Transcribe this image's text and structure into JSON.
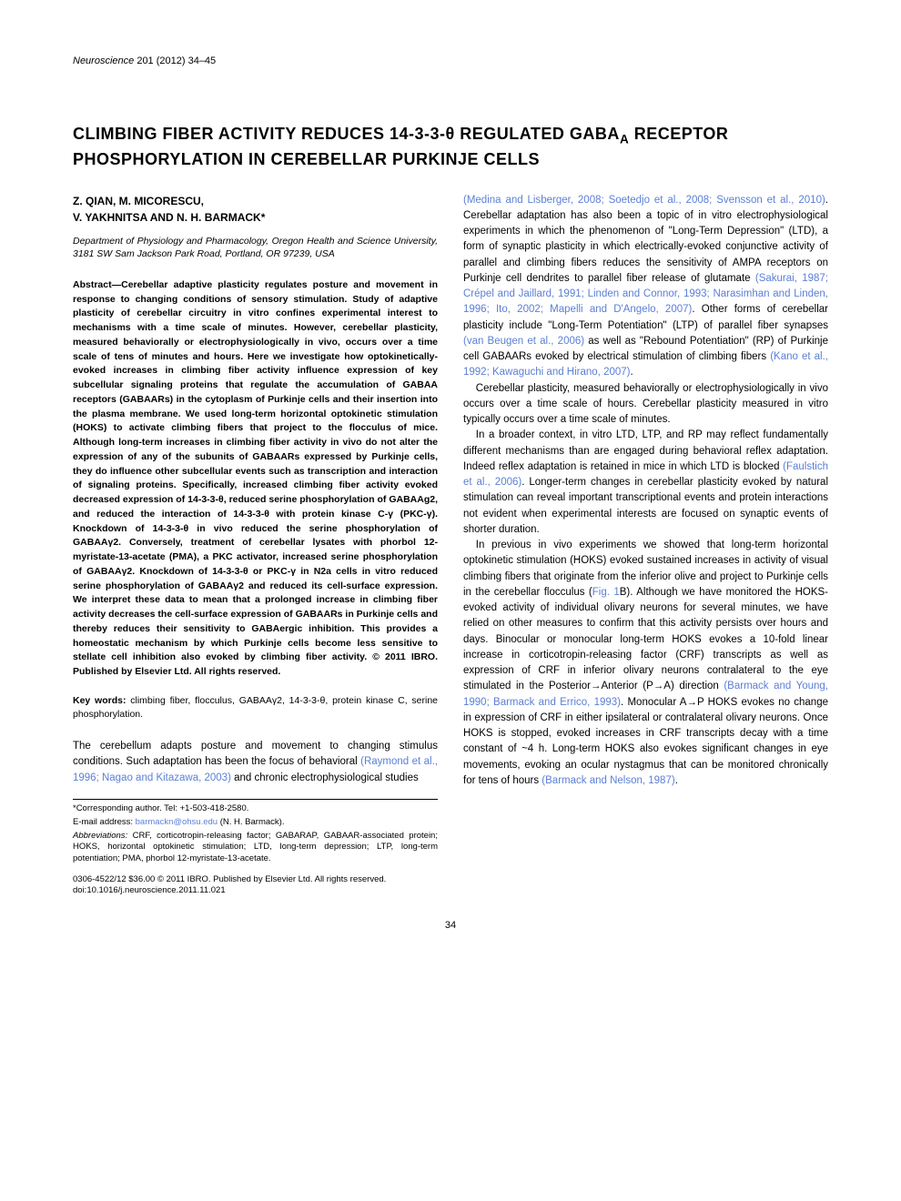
{
  "journal": {
    "name": "Neuroscience",
    "ref": " 201 (2012) 34–45"
  },
  "title": "CLIMBING FIBER ACTIVITY REDUCES 14-3-3-θ REGULATED GABA",
  "title_sub": "A",
  "title_line2": " RECEPTOR PHOSPHORYLATION IN CEREBELLAR PURKINJE CELLS",
  "authors_line1": "Z. QIAN, M. MICORESCU,",
  "authors_line2": "V. YAKHNITSA AND N. H. BARMACK*",
  "affiliation": "Department of Physiology and Pharmacology, Oregon Health and Science University, 3181 SW Sam Jackson Park Road, Portland, OR 97239, USA",
  "abstract_label": "Abstract—",
  "abstract_text": "Cerebellar adaptive plasticity regulates posture and movement in response to changing conditions of sensory stimulation. Study of adaptive plasticity of cerebellar circuitry in vitro confines experimental interest to mechanisms with a time scale of minutes. However, cerebellar plasticity, measured behaviorally or electrophysiologically in vivo, occurs over a time scale of tens of minutes and hours. Here we investigate how optokinetically-evoked increases in climbing fiber activity influence expression of key subcellular signaling proteins that regulate the accumulation of GABAA receptors (GABAARs) in the cytoplasm of Purkinje cells and their insertion into the plasma membrane. We used long-term horizontal optokinetic stimulation (HOKS) to activate climbing fibers that project to the flocculus of mice. Although long-term increases in climbing fiber activity in vivo do not alter the expression of any of the subunits of GABAARs expressed by Purkinje cells, they do influence other subcellular events such as transcription and interaction of signaling proteins. Specifically, increased climbing fiber activity evoked decreased expression of 14-3-3-θ, reduced serine phosphorylation of GABAAg2, and reduced the interaction of 14-3-3-θ with protein kinase C-γ (PKC-γ). Knockdown of 14-3-3-θ in vivo reduced the serine phosphorylation of GABAAγ2. Conversely, treatment of cerebellar lysates with phorbol 12-myristate-13-acetate (PMA), a PKC activator, increased serine phosphorylation of GABAAγ2. Knockdown of 14-3-3-θ or PKC-γ in N2a cells in vitro reduced serine phosphorylation of GABAAγ2 and reduced its cell-surface expression. We interpret these data to mean that a prolonged increase in climbing fiber activity decreases the cell-surface expression of GABAARs in Purkinje cells and thereby reduces their sensitivity to GABAergic inhibition. This provides a homeostatic mechanism by which Purkinje cells become less sensitive to stellate cell inhibition also evoked by climbing fiber activity. © 2011 IBRO. Published by Elsevier Ltd. All rights reserved.",
  "keywords_label": "Key words: ",
  "keywords_text": "climbing fiber, flocculus, GABAAγ2, 14-3-3-θ, protein kinase C, serine phosphorylation.",
  "intro_p1_a": "The cerebellum adapts posture and movement to changing stimulus conditions. Such adaptation has been the focus of behavioral ",
  "intro_p1_ref1": "(Raymond et al., 1996; Nagao and Kitazawa, 2003)",
  "intro_p1_b": " and chronic electrophysiological studies",
  "col2_p1_ref1": "(Medina and Lisberger, 2008; Soetedjo et al., 2008; Svensson et al., 2010)",
  "col2_p1_a": ". Cerebellar adaptation has also been a topic of in vitro electrophysiological experiments in which the phenomenon of \"Long-Term Depression\" (LTD), a form of synaptic plasticity in which electrically-evoked conjunctive activity of parallel and climbing fibers reduces the sensitivity of AMPA receptors on Purkinje cell dendrites to parallel fiber release of glutamate ",
  "col2_p1_ref2": "(Sakurai, 1987; Crépel and Jaillard, 1991; Linden and Connor, 1993; Narasimhan and Linden, 1996; Ito, 2002; Mapelli and D'Angelo, 2007)",
  "col2_p1_b": ". Other forms of cerebellar plasticity include \"Long-Term Potentiation\" (LTP) of parallel fiber synapses ",
  "col2_p1_ref3": "(van Beugen et al., 2006)",
  "col2_p1_c": " as well as \"Rebound Potentiation\" (RP) of Purkinje cell GABAARs evoked by electrical stimulation of climbing fibers ",
  "col2_p1_ref4": "(Kano et al., 1992; Kawaguchi and Hirano, 2007)",
  "col2_p1_d": ".",
  "col2_p2": "Cerebellar plasticity, measured behaviorally or electrophysiologically in vivo occurs over a time scale of hours. Cerebellar plasticity measured in vitro typically occurs over a time scale of minutes.",
  "col2_p3_a": "In a broader context, in vitro LTD, LTP, and RP may reflect fundamentally different mechanisms than are engaged during behavioral reflex adaptation. Indeed reflex adaptation is retained in mice in which LTD is blocked ",
  "col2_p3_ref1": "(Faulstich et al., 2006)",
  "col2_p3_b": ". Longer-term changes in cerebellar plasticity evoked by natural stimulation can reveal important transcriptional events and protein interactions not evident when experimental interests are focused on synaptic events of shorter duration.",
  "col2_p4_a": "In previous in vivo experiments we showed that long-term horizontal optokinetic stimulation (HOKS) evoked sustained increases in activity of visual climbing fibers that originate from the inferior olive and project to Purkinje cells in the cerebellar flocculus (",
  "col2_p4_ref1": "Fig. 1",
  "col2_p4_b": "B). Although we have monitored the HOKS-evoked activity of individual olivary neurons for several minutes, we have relied on other measures to confirm that this activity persists over hours and days. Binocular or monocular long-term HOKS evokes a 10-fold linear increase in corticotropin-releasing factor (CRF) transcripts as well as expression of CRF in inferior olivary neurons contralateral to the eye stimulated in the Posterior→Anterior (P→A) direction ",
  "col2_p4_ref2": "(Barmack and Young, 1990; Barmack and Errico, 1993)",
  "col2_p4_c": ". Monocular A→P HOKS evokes no change in expression of CRF in either ipsilateral or contralateral olivary neurons. Once HOKS is stopped, evoked increases in CRF transcripts decay with a time constant of ~4 h. Long-term HOKS also evokes significant changes in eye movements, evoking an ocular nystagmus that can be monitored chronically for tens of hours ",
  "col2_p4_ref3": "(Barmack and Nelson, 1987)",
  "col2_p4_d": ".",
  "footnotes": {
    "corresponding": "*Corresponding author. Tel: +1-503-418-2580.",
    "email_label": "E-mail address: ",
    "email": "barmackn@ohsu.edu",
    "email_name": " (N. H. Barmack).",
    "abbrev_label": "Abbreviations:",
    "abbrev_text": " CRF, corticotropin-releasing factor; GABARAP, GABAAR-associated protein; HOKS, horizontal optokinetic stimulation; LTD, long-term depression; LTP, long-term potentiation; PMA, phorbol 12-myristate-13-acetate."
  },
  "copyright_line1": "0306-4522/12 $36.00 © 2011 IBRO. Published by Elsevier Ltd. All rights reserved.",
  "copyright_line2": "doi:10.1016/j.neuroscience.2011.11.021",
  "page_number": "34"
}
